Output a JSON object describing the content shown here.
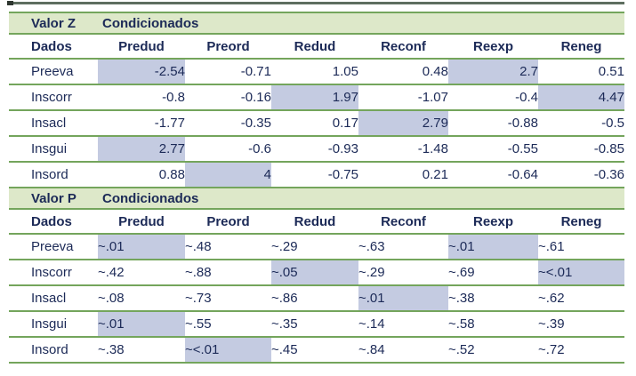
{
  "colors": {
    "page_bg": "#ffffff",
    "rule_green": "#74a55c",
    "band_bg": "#dde8c9",
    "highlight_blue": "#c4cbe1",
    "text_navy": "#1c2a57",
    "top_rule_gray": "#5e6e60",
    "top_rule_cap": "#2e362f"
  },
  "tables": [
    {
      "band_label": "Valor Z",
      "band_title": "Condicionados",
      "value_align": "right",
      "columns": [
        "Dados",
        "Predud",
        "Preord",
        "Redud",
        "Reconf",
        "Reexp",
        "Reneg"
      ],
      "rows": [
        {
          "label": "Preeva",
          "cells": [
            {
              "v": "-2.54",
              "hl": true
            },
            {
              "v": "-0.71"
            },
            {
              "v": "1.05"
            },
            {
              "v": "0.48"
            },
            {
              "v": "2.7",
              "hl": true
            },
            {
              "v": "0.51"
            }
          ]
        },
        {
          "label": "Inscorr",
          "cells": [
            {
              "v": "-0.8"
            },
            {
              "v": "-0.16"
            },
            {
              "v": "1.97",
              "hl": true
            },
            {
              "v": "-1.07"
            },
            {
              "v": "-0.4"
            },
            {
              "v": "4.47",
              "hl": true
            }
          ]
        },
        {
          "label": "Insacl",
          "cells": [
            {
              "v": "-1.77"
            },
            {
              "v": "-0.35"
            },
            {
              "v": "0.17"
            },
            {
              "v": "2.79",
              "hl": true
            },
            {
              "v": "-0.88"
            },
            {
              "v": "-0.5"
            }
          ]
        },
        {
          "label": "Insgui",
          "cells": [
            {
              "v": "2.77",
              "hl": true
            },
            {
              "v": "-0.6"
            },
            {
              "v": "-0.93"
            },
            {
              "v": "-1.48"
            },
            {
              "v": "-0.55"
            },
            {
              "v": "-0.85"
            }
          ]
        },
        {
          "label": "Insord",
          "cells": [
            {
              "v": "0.88"
            },
            {
              "v": "4",
              "hl": true
            },
            {
              "v": "-0.75"
            },
            {
              "v": "0.21"
            },
            {
              "v": "-0.64"
            },
            {
              "v": "-0.36"
            }
          ]
        }
      ]
    },
    {
      "band_label": "Valor P",
      "band_title": "Condicionados",
      "value_align": "left",
      "columns": [
        "Dados",
        "Predud",
        "Preord",
        "Redud",
        "Reconf",
        "Reexp",
        "Reneg"
      ],
      "rows": [
        {
          "label": "Preeva",
          "cells": [
            {
              "v": "~.01",
              "hl": true
            },
            {
              "v": "~.48"
            },
            {
              "v": "~.29"
            },
            {
              "v": "~.63"
            },
            {
              "v": "~.01",
              "hl": true
            },
            {
              "v": "~.61"
            }
          ]
        },
        {
          "label": "Inscorr",
          "cells": [
            {
              "v": "~.42"
            },
            {
              "v": "~.88"
            },
            {
              "v": "~.05",
              "hl": true
            },
            {
              "v": "~.29"
            },
            {
              "v": "~.69"
            },
            {
              "v": "~<.01",
              "hl": true
            }
          ]
        },
        {
          "label": "Insacl",
          "cells": [
            {
              "v": "~.08"
            },
            {
              "v": "~.73"
            },
            {
              "v": "~.86"
            },
            {
              "v": "~.01",
              "hl": true
            },
            {
              "v": "~.38"
            },
            {
              "v": "~.62"
            }
          ]
        },
        {
          "label": "Insgui",
          "cells": [
            {
              "v": "~.01",
              "hl": true
            },
            {
              "v": "~.55"
            },
            {
              "v": "~.35"
            },
            {
              "v": "~.14"
            },
            {
              "v": "~.58"
            },
            {
              "v": "~.39"
            }
          ]
        },
        {
          "label": "Insord",
          "cells": [
            {
              "v": "~.38"
            },
            {
              "v": "~<.01",
              "hl": true
            },
            {
              "v": "~.45"
            },
            {
              "v": "~.84"
            },
            {
              "v": "~.52"
            },
            {
              "v": "~.72"
            }
          ]
        }
      ]
    }
  ]
}
